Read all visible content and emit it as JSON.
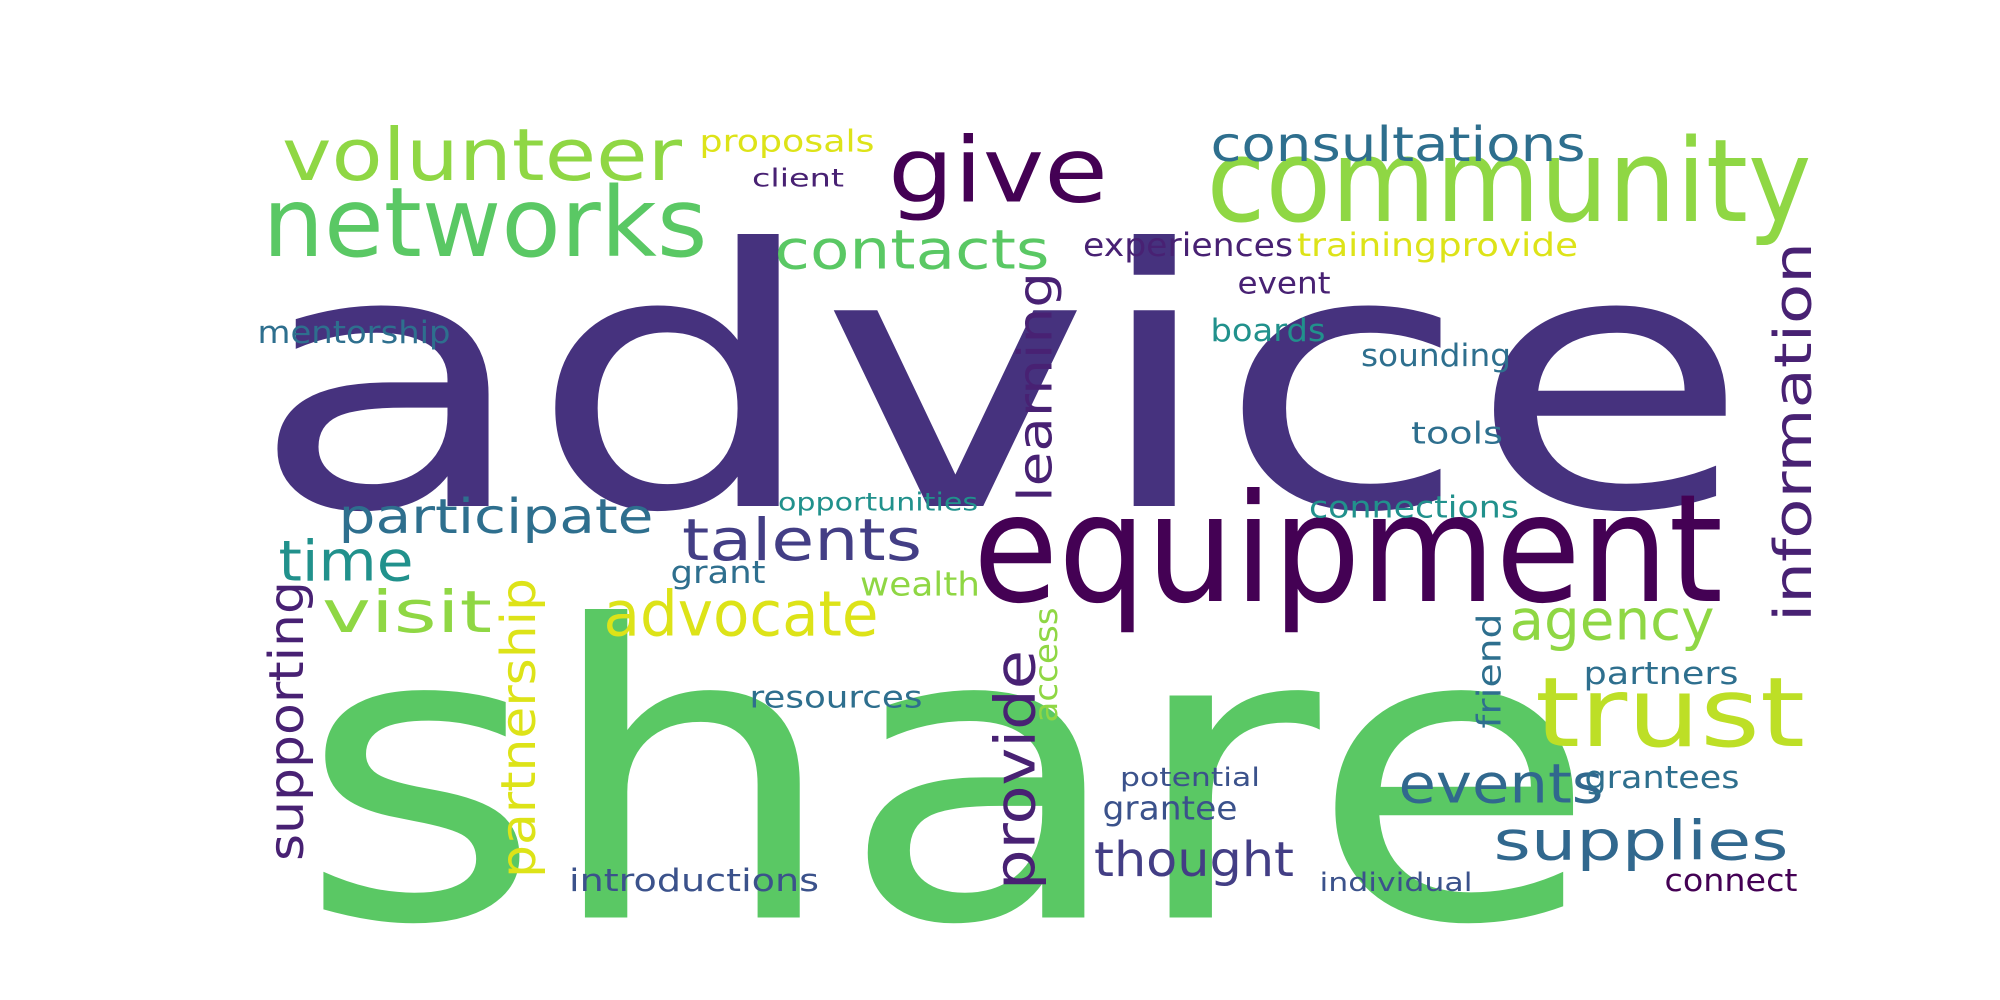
{
  "word_cloud": {
    "words": [
      {
        "text": "advice",
        "color": "#46327e"
      },
      {
        "text": "share",
        "color": "#5ac864"
      },
      {
        "text": "equipment",
        "color": "#440154"
      },
      {
        "text": "community",
        "color": "#8fd744"
      },
      {
        "text": "networks",
        "color": "#5ac864"
      },
      {
        "text": "give",
        "color": "#440154"
      },
      {
        "text": "volunteer",
        "color": "#8fd744"
      },
      {
        "text": "trust",
        "color": "#bddf26"
      },
      {
        "text": "contacts",
        "color": "#5ac864"
      },
      {
        "text": "consultations",
        "color": "#2e6f8e"
      },
      {
        "text": "proposals",
        "color": "#dde318"
      },
      {
        "text": "client",
        "color": "#482173"
      },
      {
        "text": "experiences",
        "color": "#482173"
      },
      {
        "text": "training",
        "color": "#dde318"
      },
      {
        "text": "provide",
        "color": "#dde318"
      },
      {
        "text": "event",
        "color": "#482173"
      },
      {
        "text": "mentorship",
        "color": "#2e6f8e"
      },
      {
        "text": "boards",
        "color": "#21918c"
      },
      {
        "text": "sounding",
        "color": "#2e6f8e"
      },
      {
        "text": "learning",
        "color": "#482173"
      },
      {
        "text": "information",
        "color": "#482173"
      },
      {
        "text": "tools",
        "color": "#2e6f8e"
      },
      {
        "text": "opportunities",
        "color": "#21918c"
      },
      {
        "text": "connections",
        "color": "#21918c"
      },
      {
        "text": "participate",
        "color": "#2e6f8e"
      },
      {
        "text": "talents",
        "color": "#433e85"
      },
      {
        "text": "time",
        "color": "#21918c"
      },
      {
        "text": "grant",
        "color": "#2e6f8e"
      },
      {
        "text": "wealth",
        "color": "#8fd744"
      },
      {
        "text": "visit",
        "color": "#8fd744"
      },
      {
        "text": "advocate",
        "color": "#dde318"
      },
      {
        "text": "agency",
        "color": "#8fd744"
      },
      {
        "text": "supporting",
        "color": "#482173"
      },
      {
        "text": "partnership",
        "color": "#dde318"
      },
      {
        "text": "provide",
        "color": "#482173"
      },
      {
        "text": "access",
        "color": "#8fd744"
      },
      {
        "text": "friend",
        "color": "#2e6f8e"
      },
      {
        "text": "partners",
        "color": "#2e6f8e"
      },
      {
        "text": "resources",
        "color": "#2e6f8e"
      },
      {
        "text": "events",
        "color": "#31688e"
      },
      {
        "text": "supplies",
        "color": "#31688e"
      },
      {
        "text": "potential",
        "color": "#3b528b"
      },
      {
        "text": "grantees",
        "color": "#2e6f8e"
      },
      {
        "text": "grantee",
        "color": "#3b528b"
      },
      {
        "text": "thought",
        "color": "#433e85"
      },
      {
        "text": "introductions",
        "color": "#3b528b"
      },
      {
        "text": "individual",
        "color": "#3b528b"
      },
      {
        "text": "connect",
        "color": "#440154"
      }
    ]
  }
}
